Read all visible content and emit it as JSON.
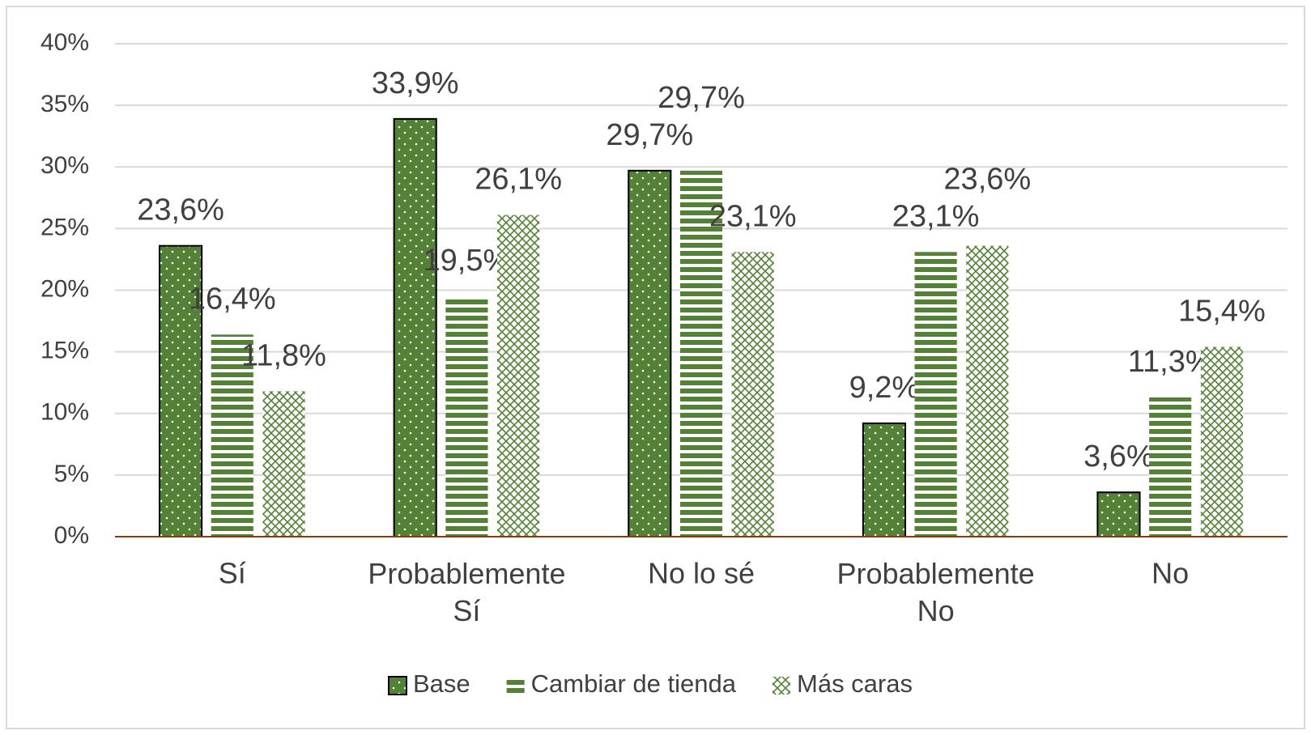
{
  "chart_data": {
    "type": "bar",
    "categories": [
      "Sí",
      "Probablemente Sí",
      "No lo sé",
      "Probablemente No",
      "No"
    ],
    "series": [
      {
        "name": "Base",
        "color": "#538135",
        "values": [
          23.6,
          33.9,
          29.7,
          9.2,
          3.6
        ],
        "value_labels": [
          "23,6%",
          "33,9%",
          "29,7%",
          "9,2%",
          "3,6%"
        ]
      },
      {
        "name": "Cambiar de tienda",
        "color": "#538135",
        "values": [
          16.4,
          19.5,
          29.7,
          23.1,
          11.3
        ],
        "value_labels": [
          "16,4%",
          "19,5%",
          "29,7%",
          "23,1%",
          "11,3%"
        ]
      },
      {
        "name": "Más caras",
        "color": "#538135",
        "values": [
          11.8,
          26.1,
          23.1,
          23.6,
          15.4
        ],
        "value_labels": [
          "11,8%",
          "26,1%",
          "23,1%",
          "23,6%",
          "15,4%"
        ]
      }
    ],
    "ylim": [
      0,
      40
    ],
    "yticks": [
      {
        "value": 0,
        "label": "0%"
      },
      {
        "value": 5,
        "label": "5%"
      },
      {
        "value": 10,
        "label": "10%"
      },
      {
        "value": 15,
        "label": "15%"
      },
      {
        "value": 20,
        "label": "20%"
      },
      {
        "value": 25,
        "label": "25%"
      },
      {
        "value": 30,
        "label": "30%"
      },
      {
        "value": 35,
        "label": "35%"
      },
      {
        "value": 40,
        "label": "40%"
      }
    ],
    "grid": true,
    "legend": "bottom"
  }
}
